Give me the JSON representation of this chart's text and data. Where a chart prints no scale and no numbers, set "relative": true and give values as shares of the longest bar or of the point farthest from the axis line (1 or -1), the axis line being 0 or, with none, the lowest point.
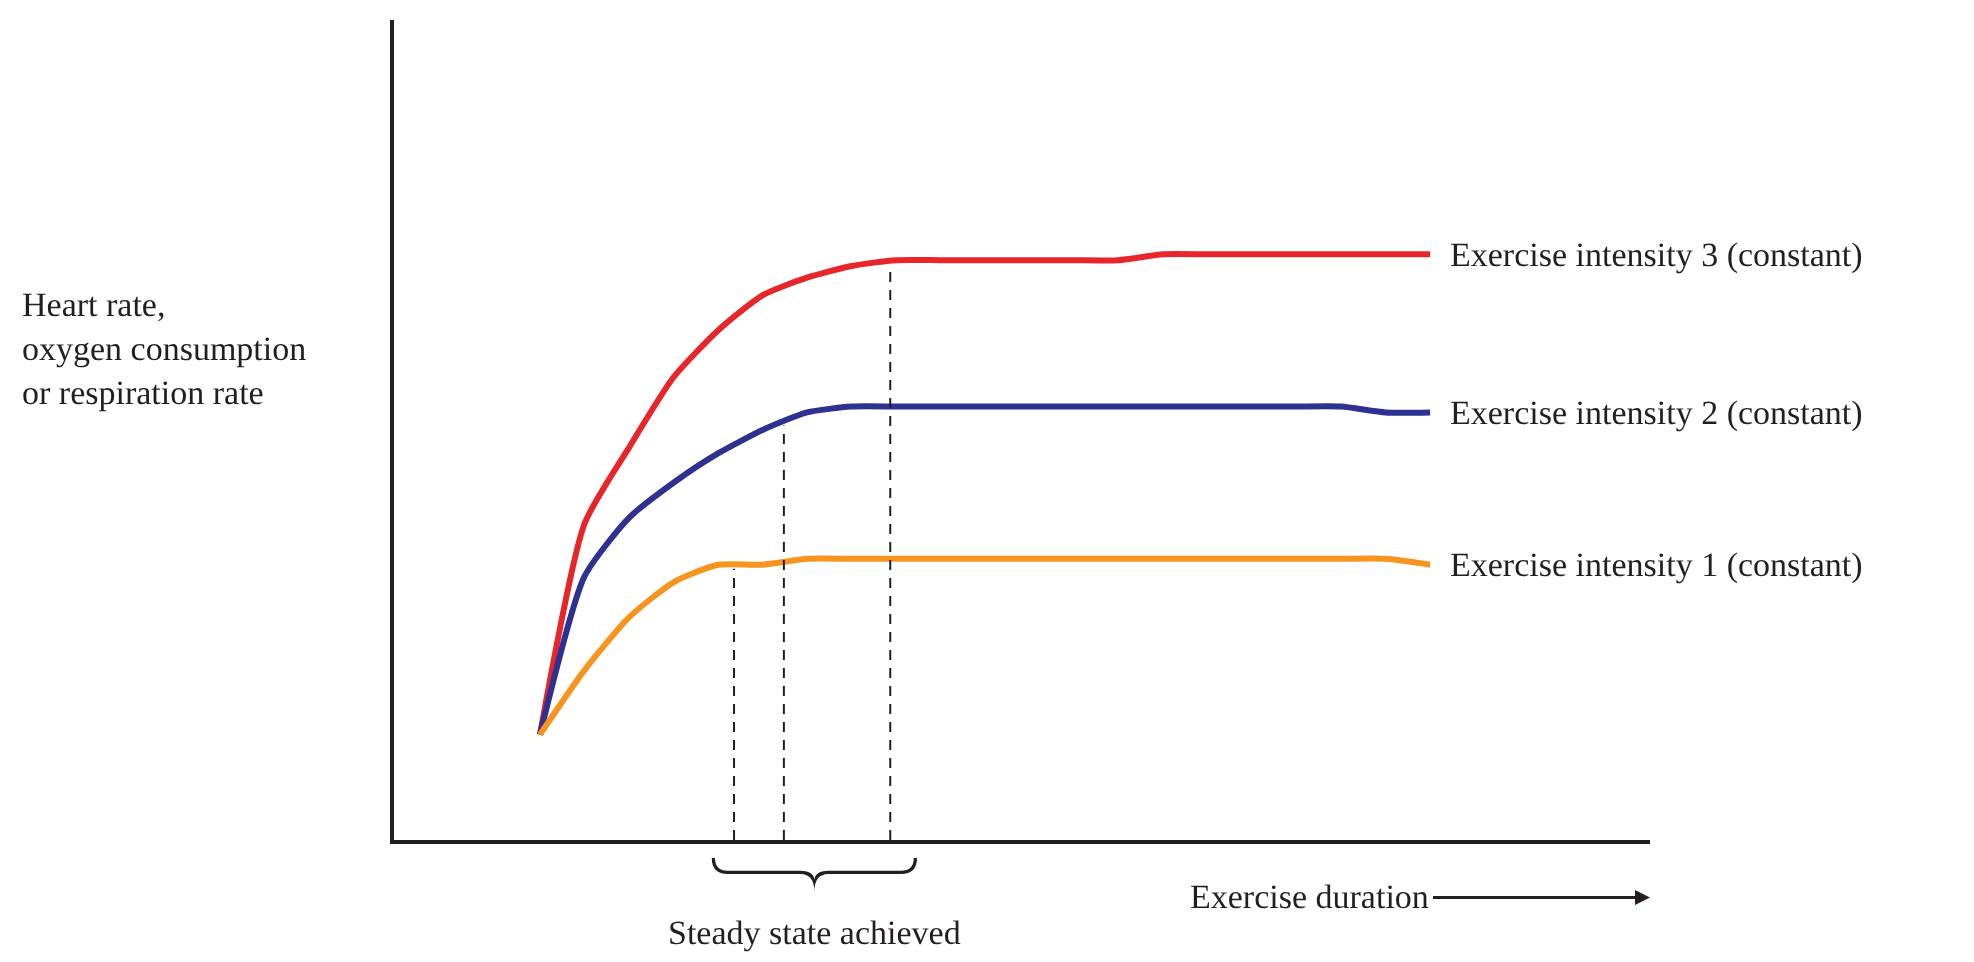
{
  "chart_data": {
    "type": "line",
    "relative": true,
    "xlabel": "Exercise duration",
    "categories": [
      null,
      null,
      null,
      null,
      null,
      null,
      null,
      null,
      null,
      null,
      null,
      null,
      null,
      null,
      null,
      null,
      null,
      null,
      null,
      null,
      null
    ],
    "series": [
      {
        "name": "Exercise intensity 3 (constant)",
        "color": "#e8262a",
        "values": [
          0.18,
          0.54,
          0.67,
          0.79,
          0.87,
          0.93,
          0.96,
          0.98,
          0.99,
          0.99,
          0.99,
          0.99,
          0.99,
          0.99,
          1.0,
          1.0,
          1.0,
          1.0,
          1.0,
          1.0,
          1.0
        ]
      },
      {
        "name": "Exercise intensity 2 (constant)",
        "color": "#2e3192",
        "values": [
          0.18,
          0.45,
          0.55,
          0.61,
          0.66,
          0.7,
          0.73,
          0.74,
          0.74,
          0.74,
          0.74,
          0.74,
          0.74,
          0.74,
          0.74,
          0.74,
          0.74,
          0.74,
          0.74,
          0.73,
          0.73
        ]
      },
      {
        "name": "Exercise intensity 1 (constant)",
        "color": "#f7941d",
        "values": [
          0.18,
          0.29,
          0.38,
          0.44,
          0.47,
          0.47,
          0.48,
          0.48,
          0.48,
          0.48,
          0.48,
          0.48,
          0.48,
          0.48,
          0.48,
          0.48,
          0.48,
          0.48,
          0.48,
          0.48,
          0.47
        ]
      }
    ],
    "annotations": [
      "Heart rate,\noxygen consumption\nor respiration rate",
      "Steady state achieved"
    ],
    "grid": false,
    "legend": false,
    "marker": "none",
    "line_style": "solid"
  }
}
